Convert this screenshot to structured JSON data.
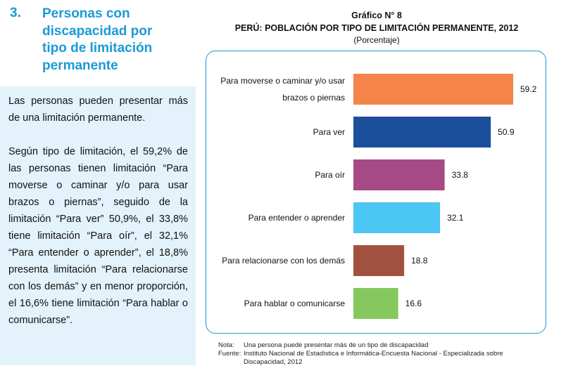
{
  "section": {
    "number": "3.",
    "title_lines": [
      "Personas con",
      "discapacidad por",
      "tipo de limitación",
      "permanente"
    ]
  },
  "body_text": {
    "p1": "Las personas pueden presentar más de una limitación permanente.",
    "p2": "Según tipo de limitación, el 59,2% de las personas tienen limitación “Para moverse o caminar y/o para usar brazos o piernas”, seguido de la limitación “Para ver” 50,9%, el 33,8% tiene limitación “Para oír”, el 32,1% “Para entender o aprender”, el 18,8% presenta limitación “Para relacionarse con los demás” y en menor proporción, el 16,6% tiene limitación “Para hablar o comunicarse”."
  },
  "chart_data": {
    "type": "bar",
    "orientation": "horizontal",
    "label": "Gráfico N° 8",
    "title": "PERÚ: POBLACIÓN POR TIPO DE LIMITACIÓN PERMANENTE, 2012",
    "unit": "(Porcentaje)",
    "categories": [
      [
        "Para moverse o caminar y/o usar",
        "brazos o piernas"
      ],
      [
        "Para ver"
      ],
      [
        "Para oír"
      ],
      [
        "Para entender o aprender"
      ],
      [
        "Para relacionarse con los demás"
      ],
      [
        "Para hablar o comunicarse"
      ]
    ],
    "values": [
      59.2,
      50.9,
      33.8,
      32.1,
      18.8,
      16.6
    ],
    "value_labels": [
      "59.2",
      "50.9",
      "33.8",
      "32.1",
      "18.8",
      "16.6"
    ],
    "colors": [
      "#f4844a",
      "#1b4f9c",
      "#a64a86",
      "#4cc6f2",
      "#a0523e",
      "#85c95e"
    ],
    "xlim": [
      0,
      59.2
    ],
    "grid": false,
    "legend": "none"
  },
  "notes": {
    "note_label": "Nota:",
    "note_text": "Una persona puede presentar más de un tipo de discapacidad",
    "source_label": "Fuente:",
    "source_lines": [
      "Instituto Nacional de Estadística e Informática-Encuesta Nacional - Especializada sobre",
      "Discapacidad, 2012"
    ]
  }
}
